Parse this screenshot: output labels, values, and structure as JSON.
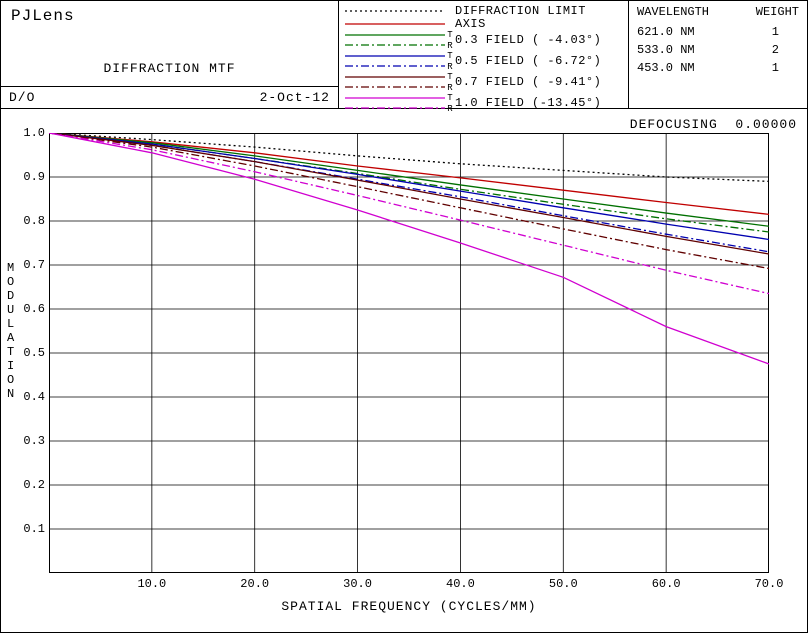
{
  "header": {
    "lens_name": "PJLens",
    "subtitle": "DIFFRACTION MTF",
    "do_label": "D/O",
    "date": "2-Oct-12"
  },
  "legend": {
    "items": [
      {
        "label": "DIFFRACTION LIMIT",
        "color": "#000000",
        "dash": "2,3",
        "tr": false
      },
      {
        "label": "AXIS",
        "color": "#c00000",
        "dash": "",
        "tr": false
      },
      {
        "label": "0.3 FIELD ( -4.03°)",
        "color": "#007000",
        "dash_t": "",
        "dash_r": "8,3,2,3",
        "tr": true
      },
      {
        "label": "0.5 FIELD ( -6.72°)",
        "color": "#0000b0",
        "dash_t": "",
        "dash_r": "8,3,2,3",
        "tr": true
      },
      {
        "label": "0.7 FIELD ( -9.41°)",
        "color": "#600000",
        "dash_t": "",
        "dash_r": "8,3,2,3",
        "tr": true
      },
      {
        "label": "1.0 FIELD (-13.45°)",
        "color": "#d000d0",
        "dash_t": "",
        "dash_r": "8,3,2,3",
        "tr": true
      }
    ]
  },
  "wavelength": {
    "head_wl": "WAVELENGTH",
    "head_wt": "WEIGHT",
    "rows": [
      {
        "wl": "621.0 NM",
        "wt": "1"
      },
      {
        "wl": "533.0 NM",
        "wt": "2"
      },
      {
        "wl": "453.0 NM",
        "wt": "1"
      }
    ]
  },
  "defocus": {
    "label": "DEFOCUSING",
    "value": "0.00000"
  },
  "chart": {
    "xlim": [
      0,
      70
    ],
    "ylim": [
      0,
      1.0
    ],
    "xticks": [
      10,
      20,
      30,
      40,
      50,
      60,
      70
    ],
    "yticks": [
      0.1,
      0.2,
      0.3,
      0.4,
      0.5,
      0.6,
      0.7,
      0.8,
      0.9,
      1.0
    ],
    "xtick_labels": [
      "10.0",
      "20.0",
      "30.0",
      "40.0",
      "50.0",
      "60.0",
      "70.0"
    ],
    "ytick_labels": [
      "0.1",
      "0.2",
      "0.3",
      "0.4",
      "0.5",
      "0.6",
      "0.7",
      "0.8",
      "0.9",
      "1.0"
    ],
    "xlabel": "SPATIAL FREQUENCY (CYCLES/MM)",
    "ylabel": "MODULATION",
    "grid_color": "#000000",
    "series": [
      {
        "color": "#000000",
        "dash": "2,3",
        "pts": [
          [
            0,
            1.0
          ],
          [
            10,
            0.985
          ],
          [
            20,
            0.968
          ],
          [
            30,
            0.948
          ],
          [
            40,
            0.93
          ],
          [
            50,
            0.915
          ],
          [
            60,
            0.9
          ],
          [
            70,
            0.89
          ]
        ]
      },
      {
        "color": "#c00000",
        "dash": "",
        "pts": [
          [
            0,
            1.0
          ],
          [
            10,
            0.98
          ],
          [
            20,
            0.955
          ],
          [
            30,
            0.925
          ],
          [
            40,
            0.898
          ],
          [
            50,
            0.87
          ],
          [
            60,
            0.842
          ],
          [
            70,
            0.815
          ]
        ]
      },
      {
        "color": "#007000",
        "dash": "",
        "pts": [
          [
            0,
            1.0
          ],
          [
            10,
            0.978
          ],
          [
            20,
            0.948
          ],
          [
            30,
            0.915
          ],
          [
            40,
            0.882
          ],
          [
            50,
            0.85
          ],
          [
            60,
            0.818
          ],
          [
            70,
            0.788
          ]
        ]
      },
      {
        "color": "#007000",
        "dash": "8,3,2,3",
        "pts": [
          [
            0,
            1.0
          ],
          [
            10,
            0.975
          ],
          [
            20,
            0.942
          ],
          [
            30,
            0.908
          ],
          [
            40,
            0.872
          ],
          [
            50,
            0.838
          ],
          [
            60,
            0.805
          ],
          [
            70,
            0.775
          ]
        ]
      },
      {
        "color": "#0000b0",
        "dash": "",
        "pts": [
          [
            0,
            1.0
          ],
          [
            10,
            0.975
          ],
          [
            20,
            0.942
          ],
          [
            30,
            0.906
          ],
          [
            40,
            0.868
          ],
          [
            50,
            0.83
          ],
          [
            60,
            0.793
          ],
          [
            70,
            0.758
          ]
        ]
      },
      {
        "color": "#0000b0",
        "dash": "8,3,2,3",
        "pts": [
          [
            0,
            1.0
          ],
          [
            10,
            0.972
          ],
          [
            20,
            0.935
          ],
          [
            30,
            0.895
          ],
          [
            40,
            0.855
          ],
          [
            50,
            0.812
          ],
          [
            60,
            0.77
          ],
          [
            70,
            0.73
          ]
        ]
      },
      {
        "color": "#600000",
        "dash": "",
        "pts": [
          [
            0,
            1.0
          ],
          [
            10,
            0.972
          ],
          [
            20,
            0.935
          ],
          [
            30,
            0.893
          ],
          [
            40,
            0.85
          ],
          [
            50,
            0.808
          ],
          [
            60,
            0.765
          ],
          [
            70,
            0.725
          ]
        ]
      },
      {
        "color": "#600000",
        "dash": "8,3,2,3",
        "pts": [
          [
            0,
            1.0
          ],
          [
            10,
            0.968
          ],
          [
            20,
            0.925
          ],
          [
            30,
            0.878
          ],
          [
            40,
            0.83
          ],
          [
            50,
            0.782
          ],
          [
            60,
            0.735
          ],
          [
            70,
            0.692
          ]
        ]
      },
      {
        "color": "#d000d0",
        "dash": "8,3,2,3",
        "pts": [
          [
            0,
            1.0
          ],
          [
            10,
            0.962
          ],
          [
            20,
            0.912
          ],
          [
            30,
            0.858
          ],
          [
            40,
            0.802
          ],
          [
            50,
            0.745
          ],
          [
            60,
            0.688
          ],
          [
            70,
            0.635
          ]
        ]
      },
      {
        "color": "#d000d0",
        "dash": "",
        "pts": [
          [
            0,
            1.0
          ],
          [
            10,
            0.955
          ],
          [
            20,
            0.895
          ],
          [
            30,
            0.825
          ],
          [
            40,
            0.75
          ],
          [
            50,
            0.672
          ],
          [
            60,
            0.56
          ],
          [
            70,
            0.475
          ]
        ]
      }
    ]
  }
}
